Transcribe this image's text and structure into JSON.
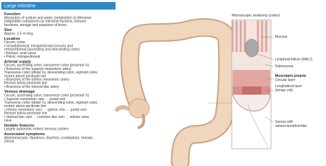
{
  "sidebar": {
    "title": "Large intestine",
    "sections": [
      {
        "heading": "Function",
        "lines": [
          "Absorption of sodium and water, metabolism of otherwise",
          "indigestible substances by intestinal bacteria, immune",
          "functions, storage and expulsion of feces"
        ]
      },
      {
        "heading": "Size",
        "lines": [
          "Approx. 1.5 m long"
        ]
      },
      {
        "heading": "Location",
        "lines": [
          "Cecum, colon",
          "• Intraabdominal: intraperitoneal (cecum) and",
          "retroperitoneal (ascending and descending colon)",
          "• Rectum, anal canal",
          "• Pelvic: extraperitoneal"
        ]
      },
      {
        "heading": "Arterial supply",
        "lines": [
          "Cecum, ascending colon, transverse colon (proximal ⅔)",
          "• Branches of the superior mesenteric artery",
          "Transverse colon (distal ⅓), descending colon, sigmoid colon,",
          "rectum above pectinate line",
          "• Branches of the inferior mesenteric artery",
          "Rectum below pectinate line",
          "• Branches of the internal iliac artery"
        ]
      },
      {
        "heading": "Venous drainage",
        "lines": [
          "Cecum, ascending colon, transverse colon (proximal ⅔)",
          "• Superior mesenteric vein → portal vein",
          "Transverse colon (distal ⅓), descending colon, sigmoid colon,",
          "rectum above pectinate line",
          "• Inferior mesenteric vein → splenic vein → portal vein",
          "Rectum below pectinate line",
          "• Internal iliac vein → common iliac vein → inferior vena",
          "cava"
        ]
      },
      {
        "heading": "Notable features",
        "lines": [
          "Largely autonomic enteric nervous system"
        ]
      },
      {
        "heading": "Associated symptoms",
        "lines": [
          "Abdominal pain, flatulence, diarrhea, constipation, hemato-",
          "chezia"
        ]
      }
    ]
  },
  "micro": {
    "title": "Microscopic anatomy (colon)",
    "labels": [
      {
        "text": "Mucosa",
        "bold": false
      },
      {
        "text": "Lymphoid follicle (MALT)",
        "bold": false
      },
      {
        "text": "Submucosa",
        "bold": false
      },
      {
        "text": "Muscularis propria",
        "bold": true
      },
      {
        "text": "Circular layer",
        "bold": false
      },
      {
        "text": "Longitudinal layer",
        "bold": false
      },
      {
        "text": "(teniae coli)",
        "bold": false
      },
      {
        "text": "Serosa with",
        "bold": false
      },
      {
        "text": "subserosa/adventitia",
        "bold": false
      }
    ]
  }
}
